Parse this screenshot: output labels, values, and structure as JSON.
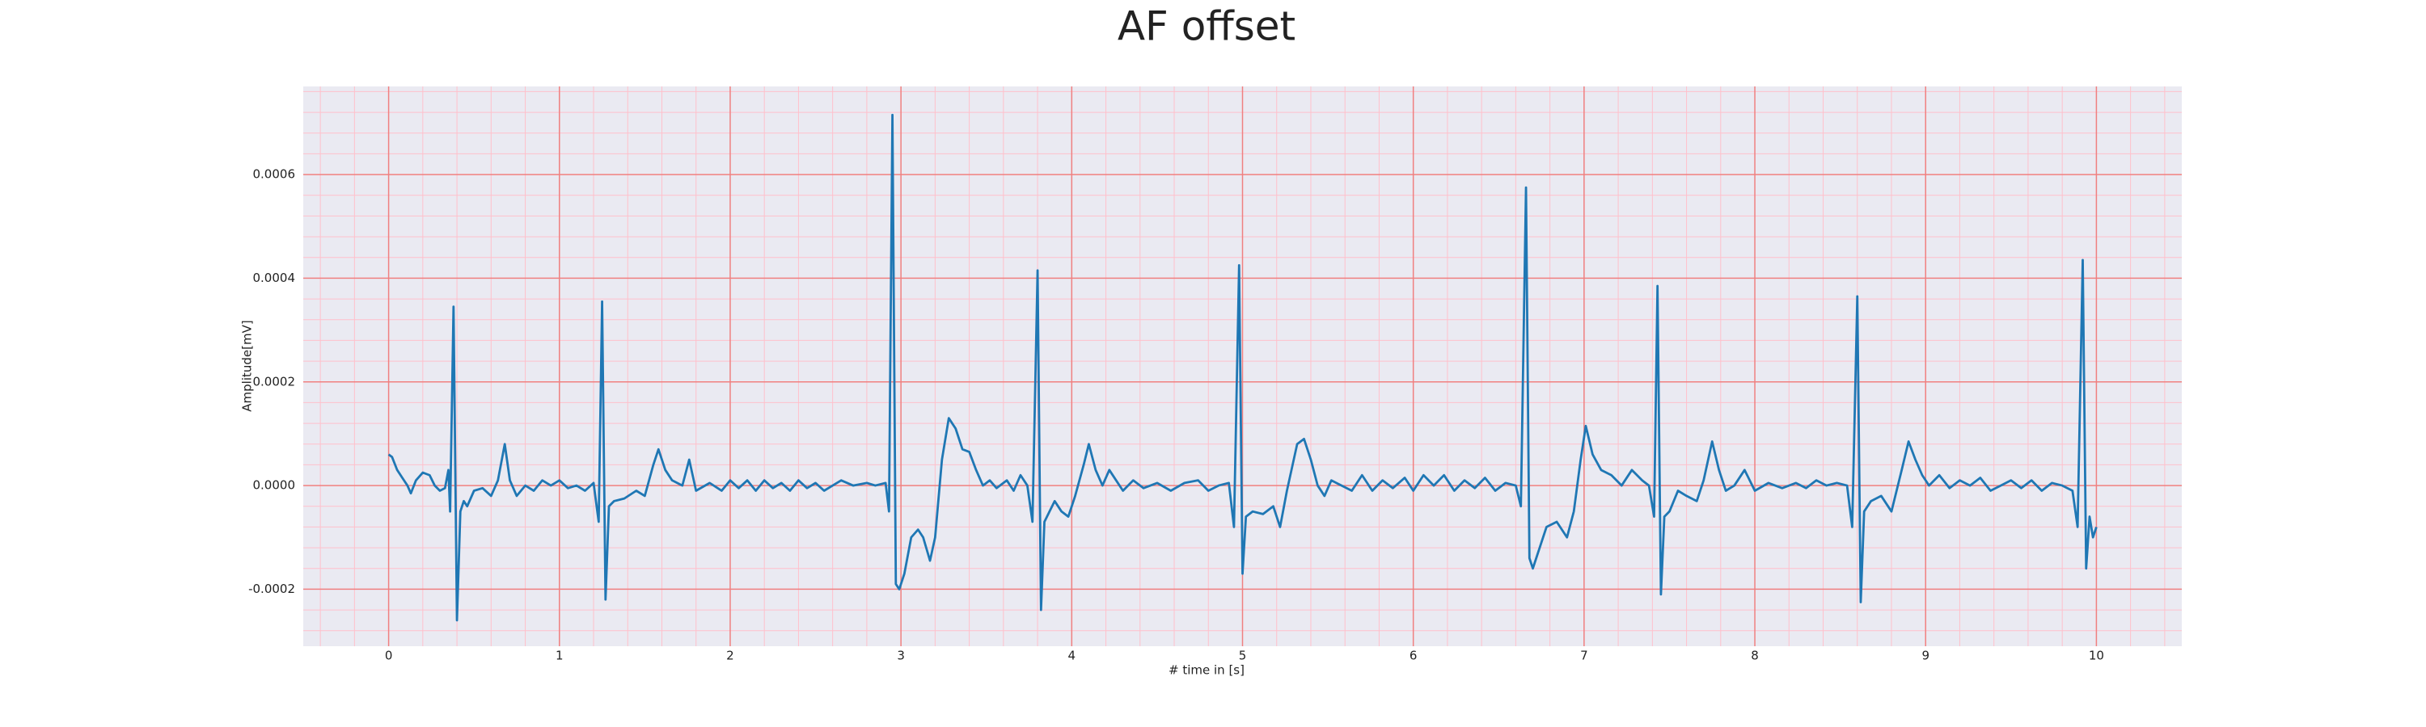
{
  "chart_data": {
    "type": "line",
    "title": "AF offset",
    "x_label": "# time in [s]",
    "y_label": "Amplitude[mV]",
    "color": "#1f77b4",
    "grid": true,
    "minor_grid": true,
    "xlim": [
      -0.5,
      10.5
    ],
    "xticks": [
      0,
      1,
      2,
      3,
      4,
      5,
      6,
      7,
      8,
      9,
      10
    ],
    "ylim": [
      -0.00031,
      0.00077
    ],
    "yticks": [
      -0.0002,
      {
        "value": 0,
        "label": "0.0000"
      },
      0.0002,
      0.0004,
      0.0006
    ],
    "x": [
      0.0,
      0.02,
      0.05,
      0.08,
      0.11,
      0.13,
      0.16,
      0.2,
      0.24,
      0.27,
      0.3,
      0.33,
      0.35,
      0.36,
      0.38,
      0.4,
      0.42,
      0.44,
      0.46,
      0.5,
      0.55,
      0.6,
      0.64,
      0.68,
      0.71,
      0.75,
      0.8,
      0.85,
      0.9,
      0.95,
      1.0,
      1.05,
      1.1,
      1.15,
      1.2,
      1.23,
      1.25,
      1.27,
      1.29,
      1.32,
      1.38,
      1.45,
      1.5,
      1.55,
      1.58,
      1.62,
      1.66,
      1.72,
      1.76,
      1.8,
      1.88,
      1.95,
      2.0,
      2.05,
      2.1,
      2.15,
      2.2,
      2.25,
      2.3,
      2.35,
      2.4,
      2.45,
      2.5,
      2.55,
      2.6,
      2.65,
      2.72,
      2.8,
      2.85,
      2.91,
      2.93,
      2.95,
      2.97,
      2.99,
      3.02,
      3.06,
      3.1,
      3.13,
      3.17,
      3.2,
      3.24,
      3.28,
      3.32,
      3.36,
      3.4,
      3.44,
      3.48,
      3.52,
      3.56,
      3.62,
      3.66,
      3.7,
      3.74,
      3.77,
      3.8,
      3.82,
      3.84,
      3.87,
      3.9,
      3.94,
      3.98,
      4.02,
      4.07,
      4.1,
      4.14,
      4.18,
      4.22,
      4.26,
      4.3,
      4.36,
      4.42,
      4.5,
      4.58,
      4.66,
      4.74,
      4.8,
      4.86,
      4.92,
      4.95,
      4.98,
      5.0,
      5.02,
      5.06,
      5.12,
      5.18,
      5.22,
      5.26,
      5.32,
      5.36,
      5.4,
      5.44,
      5.48,
      5.52,
      5.58,
      5.64,
      5.7,
      5.76,
      5.82,
      5.88,
      5.95,
      6.0,
      6.06,
      6.12,
      6.18,
      6.24,
      6.3,
      6.36,
      6.42,
      6.48,
      6.54,
      6.6,
      6.63,
      6.66,
      6.68,
      6.7,
      6.74,
      6.78,
      6.84,
      6.9,
      6.94,
      6.98,
      7.01,
      7.05,
      7.1,
      7.16,
      7.22,
      7.28,
      7.34,
      7.38,
      7.41,
      7.43,
      7.45,
      7.47,
      7.5,
      7.55,
      7.6,
      7.66,
      7.7,
      7.75,
      7.79,
      7.83,
      7.88,
      7.94,
      8.0,
      8.08,
      8.16,
      8.24,
      8.3,
      8.36,
      8.42,
      8.48,
      8.54,
      8.57,
      8.6,
      8.62,
      8.64,
      8.68,
      8.74,
      8.8,
      8.86,
      8.9,
      8.94,
      8.98,
      9.02,
      9.08,
      9.14,
      9.2,
      9.26,
      9.32,
      9.38,
      9.44,
      9.5,
      9.56,
      9.62,
      9.68,
      9.74,
      9.8,
      9.86,
      9.89,
      9.92,
      9.94,
      9.96,
      9.98,
      10.0
    ],
    "values": [
      6e-05,
      5.5e-05,
      3e-05,
      1.5e-05,
      0,
      -1.5e-05,
      1e-05,
      2.5e-05,
      2e-05,
      0,
      -1e-05,
      -5e-06,
      3e-05,
      -5e-05,
      0.000345,
      -0.00026,
      -5e-05,
      -3e-05,
      -4e-05,
      -1e-05,
      -5e-06,
      -2e-05,
      1e-05,
      8e-05,
      1e-05,
      -2e-05,
      0,
      -1e-05,
      1e-05,
      0,
      1e-05,
      -5e-06,
      0,
      -1e-05,
      5e-06,
      -7e-05,
      0.000355,
      -0.00022,
      -4e-05,
      -3e-05,
      -2.5e-05,
      -1e-05,
      -2e-05,
      4e-05,
      7e-05,
      3e-05,
      1e-05,
      0,
      5e-05,
      -1e-05,
      5e-06,
      -1e-05,
      1e-05,
      -5e-06,
      1e-05,
      -1e-05,
      1e-05,
      -5e-06,
      5e-06,
      -1e-05,
      1e-05,
      -5e-06,
      5e-06,
      -1e-05,
      0,
      1e-05,
      0,
      5e-06,
      0,
      5e-06,
      -5e-05,
      0.000715,
      -0.00019,
      -0.0002,
      -0.00017,
      -0.0001,
      -8.5e-05,
      -0.0001,
      -0.000145,
      -0.0001,
      5e-05,
      0.00013,
      0.00011,
      7e-05,
      6.5e-05,
      3e-05,
      0,
      1e-05,
      -5e-06,
      1e-05,
      -1e-05,
      2e-05,
      0,
      -7e-05,
      0.000415,
      -0.00024,
      -7e-05,
      -5e-05,
      -3e-05,
      -5e-05,
      -6e-05,
      -2e-05,
      4e-05,
      8e-05,
      3e-05,
      0,
      3e-05,
      1e-05,
      -1e-05,
      1e-05,
      -5e-06,
      5e-06,
      -1e-05,
      5e-06,
      1e-05,
      -1e-05,
      0,
      5e-06,
      -8e-05,
      0.000425,
      -0.00017,
      -6e-05,
      -5e-05,
      -5.5e-05,
      -4e-05,
      -8e-05,
      -1e-05,
      8e-05,
      9e-05,
      5e-05,
      0,
      -2e-05,
      1e-05,
      0,
      -1e-05,
      2e-05,
      -1e-05,
      1e-05,
      -5e-06,
      1.5e-05,
      -1e-05,
      2e-05,
      0,
      2e-05,
      -1e-05,
      1e-05,
      -5e-06,
      1.5e-05,
      -1e-05,
      5e-06,
      0,
      -4e-05,
      0.000575,
      -0.00014,
      -0.00016,
      -0.00012,
      -8e-05,
      -7e-05,
      -0.0001,
      -5e-05,
      5e-05,
      0.000115,
      6e-05,
      3e-05,
      2e-05,
      0,
      3e-05,
      1e-05,
      0,
      -6e-05,
      0.000385,
      -0.00021,
      -6e-05,
      -5e-05,
      -1e-05,
      -2e-05,
      -3e-05,
      1e-05,
      8.5e-05,
      3e-05,
      -1e-05,
      0,
      3e-05,
      -1e-05,
      5e-06,
      -5e-06,
      5e-06,
      -5e-06,
      1e-05,
      0,
      5e-06,
      0,
      -8e-05,
      0.000365,
      -0.000225,
      -5e-05,
      -3e-05,
      -2e-05,
      -5e-05,
      3e-05,
      8.5e-05,
      5e-05,
      2e-05,
      0,
      2e-05,
      -5e-06,
      1e-05,
      0,
      1.5e-05,
      -1e-05,
      0,
      1e-05,
      -5e-06,
      1e-05,
      -1e-05,
      5e-06,
      0,
      -1e-05,
      -8e-05,
      0.000435,
      -0.00016,
      -6e-05,
      -0.0001,
      -8e-05
    ]
  }
}
